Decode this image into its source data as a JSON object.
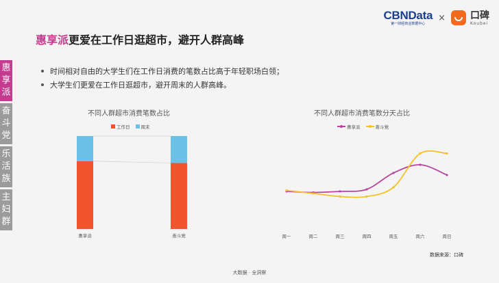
{
  "header": {
    "cbn_name": "CBNData",
    "cbn_sub": "第一财经商业数据中心",
    "times": "×",
    "koubei_name": "口碑",
    "koubei_en": "Koubei"
  },
  "title": {
    "highlight": "惠享派",
    "rest": "更爱在工作日逛超市，避开人群高峰"
  },
  "bullets": [
    "时间相对自由的大学生们在工作日消费的笔数占比高于年轻职场白领；",
    "大学生们更爱在工作日逛超市，避开周末的人群高峰。"
  ],
  "sidetabs": [
    {
      "label": [
        "惠",
        "享",
        "派"
      ],
      "active": true
    },
    {
      "label": [
        "奋",
        "斗",
        "党"
      ],
      "active": false
    },
    {
      "label": [
        "乐",
        "活",
        "族"
      ],
      "active": false
    },
    {
      "label": [
        "主",
        "妇",
        "群"
      ],
      "active": false
    }
  ],
  "chart_data": [
    {
      "type": "bar",
      "stacked": true,
      "percent": true,
      "title": "不同人群超市消费笔数占比",
      "categories": [
        "惠享派",
        "奋斗党"
      ],
      "series": [
        {
          "name": "工作日",
          "values": [
            73,
            71
          ],
          "color": "#f0542c"
        },
        {
          "name": "周末",
          "values": [
            27,
            29
          ],
          "color": "#6cc2e6"
        }
      ],
      "legend": "top-left",
      "grid": false
    },
    {
      "type": "line",
      "title": "不同人群超市消费笔数分天占比",
      "x": [
        "周一",
        "周二",
        "周三",
        "周四",
        "周五",
        "周六",
        "周日"
      ],
      "ylim": [
        0,
        100
      ],
      "series": [
        {
          "name": "惠享派",
          "values": [
            40,
            39,
            40,
            42,
            58,
            66,
            56
          ],
          "color": "#b8449e"
        },
        {
          "name": "奋斗党",
          "values": [
            41,
            38,
            35,
            35,
            44,
            77,
            77
          ],
          "color": "#f4c12b"
        }
      ],
      "legend": "top-center",
      "grid": false
    }
  ],
  "source": "数据来源：口碑",
  "footer": "大数据 · 全洞察"
}
